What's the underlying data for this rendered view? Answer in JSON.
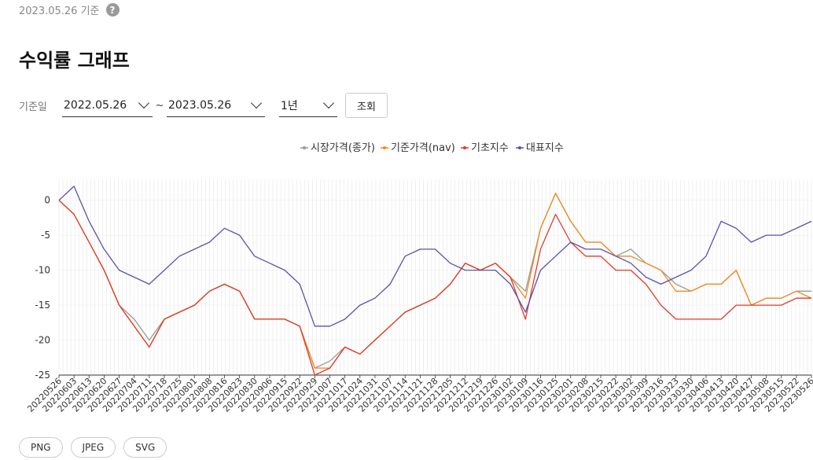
{
  "header": {
    "base_date": "2023.05.26 기준",
    "help_icon": "?"
  },
  "title": "수익률 그래프",
  "filter": {
    "label": "기준일",
    "start_date": "2022.05.26",
    "separator": "~",
    "end_date": "2023.05.26",
    "period": "1년",
    "query_button": "조회"
  },
  "export_buttons": [
    "PNG",
    "JPEG",
    "SVG"
  ],
  "colors": {
    "market": "#9a9a9a",
    "nav": "#f28a1c",
    "base_index": "#e03b2a",
    "rep_index": "#5a52a8",
    "grid": "#e6e6e6"
  },
  "chart_data": {
    "type": "line",
    "title": "",
    "xlabel": "",
    "ylabel": "",
    "ylim": [
      -25,
      3
    ],
    "yticks": [
      0,
      -5,
      -10,
      -15,
      -20,
      -25
    ],
    "legend_position": "top-center",
    "grid": true,
    "x": [
      "20220526",
      "20220603",
      "20220613",
      "20220620",
      "20220627",
      "20220704",
      "20220711",
      "20220718",
      "20220725",
      "20220801",
      "20220808",
      "20220816",
      "20220823",
      "20220830",
      "20220906",
      "20220915",
      "20220922",
      "20220929",
      "20221007",
      "20221017",
      "20221024",
      "20221031",
      "20221107",
      "20221114",
      "20221121",
      "20221128",
      "20221205",
      "20221212",
      "20221219",
      "20221226",
      "20230102",
      "20230109",
      "20230116",
      "20230125",
      "20230201",
      "20230208",
      "20230215",
      "20230222",
      "20230302",
      "20230309",
      "20230316",
      "20230323",
      "20230330",
      "20230406",
      "20230413",
      "20230420",
      "20230427",
      "20230508",
      "20230515",
      "20230522",
      "20230526"
    ],
    "series": [
      {
        "name": "시장가격(종가)",
        "values": [
          0,
          -2,
          -6,
          -10,
          -15,
          -17,
          -20,
          -17,
          -16,
          -15,
          -13,
          -12,
          -13,
          -17,
          -17,
          -17,
          -18,
          -24,
          -23,
          -21,
          -22,
          -20,
          -18,
          -16,
          -15,
          -14,
          -12,
          -9,
          -10,
          -9,
          -11,
          -13,
          -4,
          1,
          -3,
          -6,
          -6,
          -8,
          -7,
          -9,
          -10,
          -12,
          -13,
          -12,
          -12,
          -10,
          -15,
          -14,
          -14,
          -13,
          -13
        ]
      },
      {
        "name": "기준가격(nav)",
        "values": [
          0,
          -2,
          -6,
          -10,
          -15,
          -18,
          -21,
          -17,
          -16,
          -15,
          -13,
          -12,
          -13,
          -17,
          -17,
          -17,
          -18,
          -24,
          -24,
          -21,
          -22,
          -20,
          -18,
          -16,
          -15,
          -14,
          -12,
          -9,
          -10,
          -9,
          -11,
          -14,
          -4,
          1,
          -3,
          -6,
          -6,
          -8,
          -8,
          -9,
          -10,
          -13,
          -13,
          -12,
          -12,
          -10,
          -15,
          -14,
          -14,
          -13,
          -14
        ]
      },
      {
        "name": "기초지수",
        "values": [
          0,
          -2,
          -6,
          -10,
          -15,
          -18,
          -21,
          -17,
          -16,
          -15,
          -13,
          -12,
          -13,
          -17,
          -17,
          -17,
          -18,
          -25,
          -24,
          -21,
          -22,
          -20,
          -18,
          -16,
          -15,
          -14,
          -12,
          -9,
          -10,
          -9,
          -11,
          -17,
          -7,
          -2,
          -6,
          -8,
          -8,
          -10,
          -10,
          -12,
          -15,
          -17,
          -17,
          -17,
          -17,
          -15,
          -15,
          -15,
          -15,
          -14,
          -14
        ]
      },
      {
        "name": "대표지수",
        "values": [
          0,
          2,
          -3,
          -7,
          -10,
          -11,
          -12,
          -10,
          -8,
          -7,
          -6,
          -4,
          -5,
          -8,
          -9,
          -10,
          -12,
          -18,
          -18,
          -17,
          -15,
          -14,
          -12,
          -8,
          -7,
          -7,
          -9,
          -10,
          -10,
          -10,
          -12,
          -16,
          -10,
          -8,
          -6,
          -7,
          -7,
          -8,
          -9,
          -11,
          -12,
          -11,
          -10,
          -8,
          -3,
          -4,
          -6,
          -5,
          -5,
          -4,
          -3
        ]
      }
    ]
  }
}
